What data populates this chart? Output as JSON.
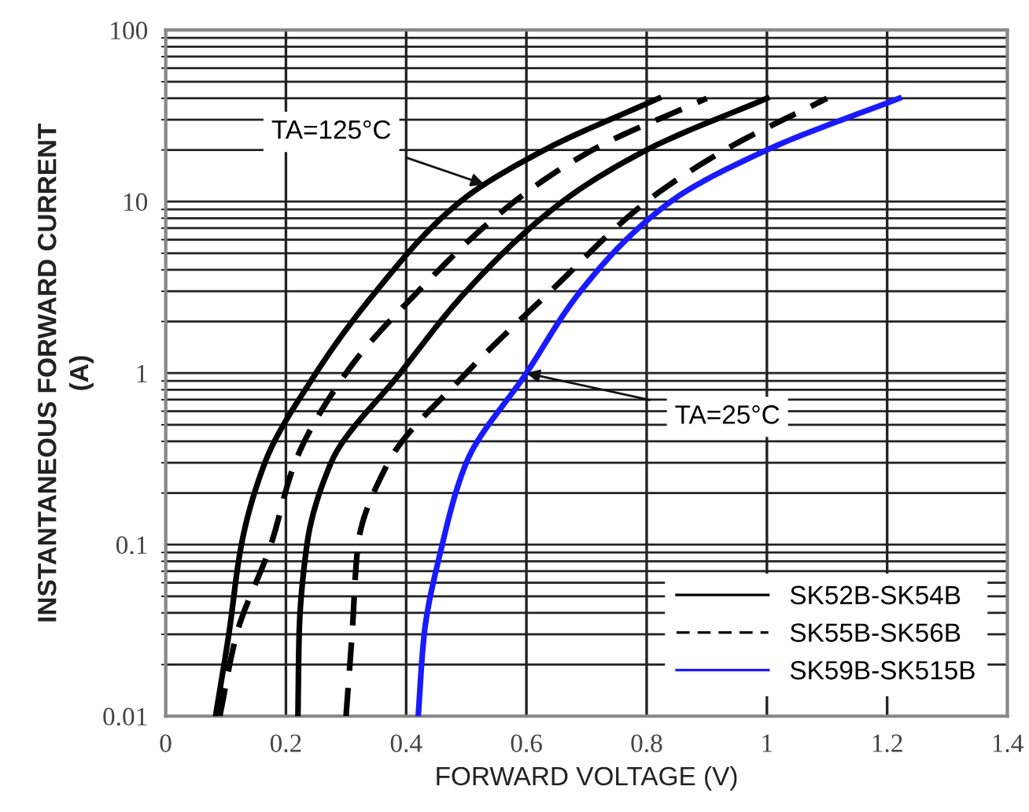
{
  "chart_data": {
    "type": "line",
    "xlabel": "FORWARD VOLTAGE (V)",
    "ylabel": "INSTANTANEOUS FORWARD CURRENT\n(A)",
    "log": "y",
    "xlim": [
      0,
      1.4
    ],
    "xticks": [
      0,
      0.2,
      0.4,
      0.6,
      0.8,
      1,
      1.2,
      1.4
    ],
    "ylim": [
      0.01,
      100
    ],
    "yticks": [
      0.01,
      0.1,
      1,
      10,
      100
    ],
    "grid": true,
    "legend": "bottom right",
    "marker": "none",
    "series": [
      {
        "name": "SK52B-SK54B",
        "color": "#000000",
        "line_style": "solid",
        "x": [
          0.083,
          0.105,
          0.126,
          0.165,
          0.25,
          0.35,
          0.49,
          0.63,
          0.82
        ],
        "values": [
          0.01,
          0.03,
          0.1,
          0.3,
          1,
          3,
          10,
          20,
          40
        ]
      },
      {
        "color": "#000000",
        "line_style": "dashed",
        "x": [
          0.09,
          0.118,
          0.175,
          0.215,
          0.3,
          0.42,
          0.58,
          0.71,
          0.9
        ],
        "values": [
          0.01,
          0.03,
          0.1,
          0.3,
          1,
          3,
          10,
          20,
          40
        ]
      },
      {
        "color": "#000000",
        "line_style": "solid",
        "x": [
          0.22,
          0.222,
          0.235,
          0.275,
          0.39,
          0.5,
          0.66,
          0.8,
          1.0
        ],
        "values": [
          0.01,
          0.03,
          0.1,
          0.3,
          1,
          3,
          10,
          20,
          40
        ]
      },
      {
        "name": "SK55B-SK56B",
        "color": "#000000",
        "line_style": "dashed",
        "x": [
          0.3,
          0.31,
          0.32,
          0.37,
          0.5,
          0.64,
          0.8,
          0.93,
          1.1
        ],
        "values": [
          0.01,
          0.03,
          0.1,
          0.3,
          1,
          3,
          10,
          20,
          40
        ]
      },
      {
        "name": "SK59B-SK515B",
        "color": "#1a1aff",
        "line_style": "solid",
        "x": [
          0.42,
          0.43,
          0.46,
          0.5,
          0.6,
          0.69,
          0.84,
          1.0,
          1.22
        ],
        "values": [
          0.01,
          0.03,
          0.1,
          0.3,
          1,
          3,
          10,
          20,
          40
        ]
      }
    ],
    "annotations": [
      {
        "text": "TA=125°C",
        "x": 0.53,
        "y": 12.6
      },
      {
        "text": "TA=25°C",
        "x": 0.6,
        "y": 1
      }
    ]
  }
}
